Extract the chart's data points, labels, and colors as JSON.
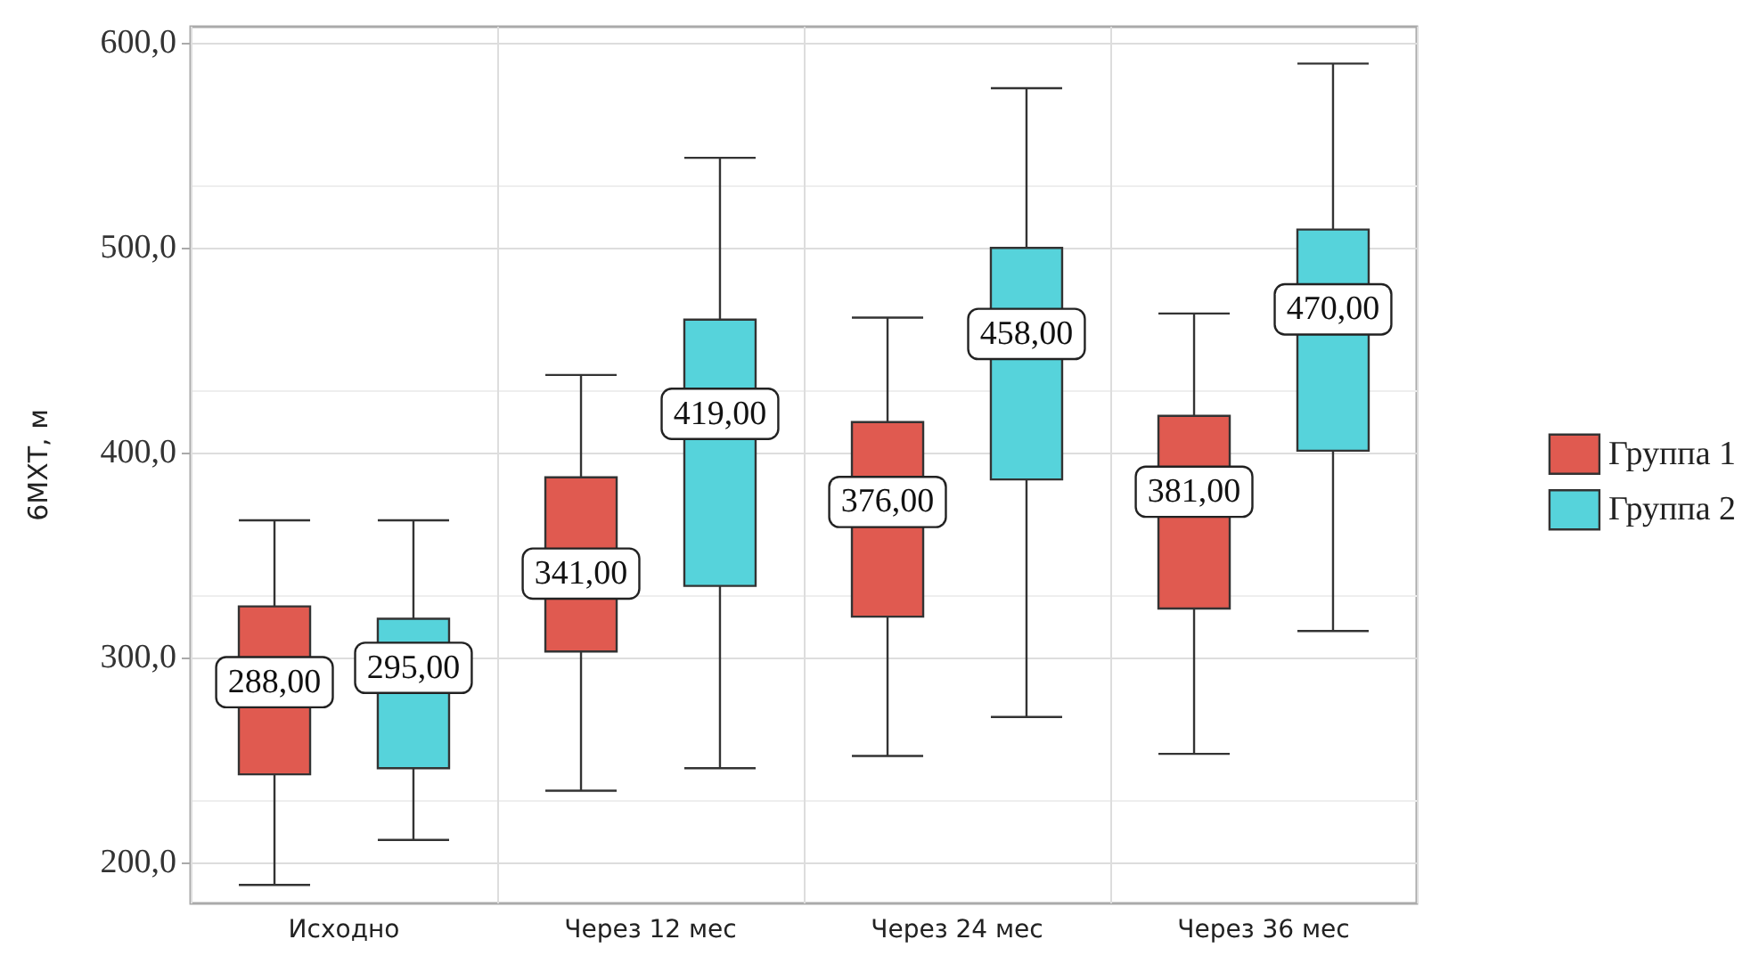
{
  "chart_data": {
    "type": "box",
    "ylabel": "6МХТ, м",
    "categories": [
      "Исходно",
      "Через 12 мес",
      "Через 24 мес",
      "Через 36 мес"
    ],
    "series": [
      {
        "name": "Группа 1",
        "color": "#e05a50",
        "boxes": [
          {
            "low": 189,
            "q1": 243,
            "median": 288,
            "q3": 325,
            "high": 367
          },
          {
            "low": 235,
            "q1": 303,
            "median": 341,
            "q3": 388,
            "high": 438
          },
          {
            "low": 252,
            "q1": 320,
            "median": 376,
            "q3": 415,
            "high": 466
          },
          {
            "low": 253,
            "q1": 324,
            "median": 381,
            "q3": 418,
            "high": 468
          }
        ],
        "value_labels": [
          "288,00",
          "341,00",
          "376,00",
          "381,00"
        ]
      },
      {
        "name": "Группа 2",
        "color": "#56d3db",
        "boxes": [
          {
            "low": 211,
            "q1": 246,
            "median": 295,
            "q3": 319,
            "high": 367
          },
          {
            "low": 246,
            "q1": 335,
            "median": 419,
            "q3": 465,
            "high": 544
          },
          {
            "low": 271,
            "q1": 387,
            "median": 458,
            "q3": 500,
            "high": 578
          },
          {
            "low": 313,
            "q1": 401,
            "median": 470,
            "q3": 509,
            "high": 590
          }
        ],
        "value_labels": [
          "295,00",
          "419,00",
          "458,00",
          "470,00"
        ]
      }
    ],
    "ylim": [
      180,
      608
    ],
    "yticks": [
      {
        "value": 200,
        "label": "200,0"
      },
      {
        "value": 300,
        "label": "300,0"
      },
      {
        "value": 400,
        "label": "400,0"
      },
      {
        "value": 500,
        "label": "500,0"
      },
      {
        "value": 600,
        "label": "600,0"
      }
    ],
    "grid": true,
    "legend": "right"
  }
}
